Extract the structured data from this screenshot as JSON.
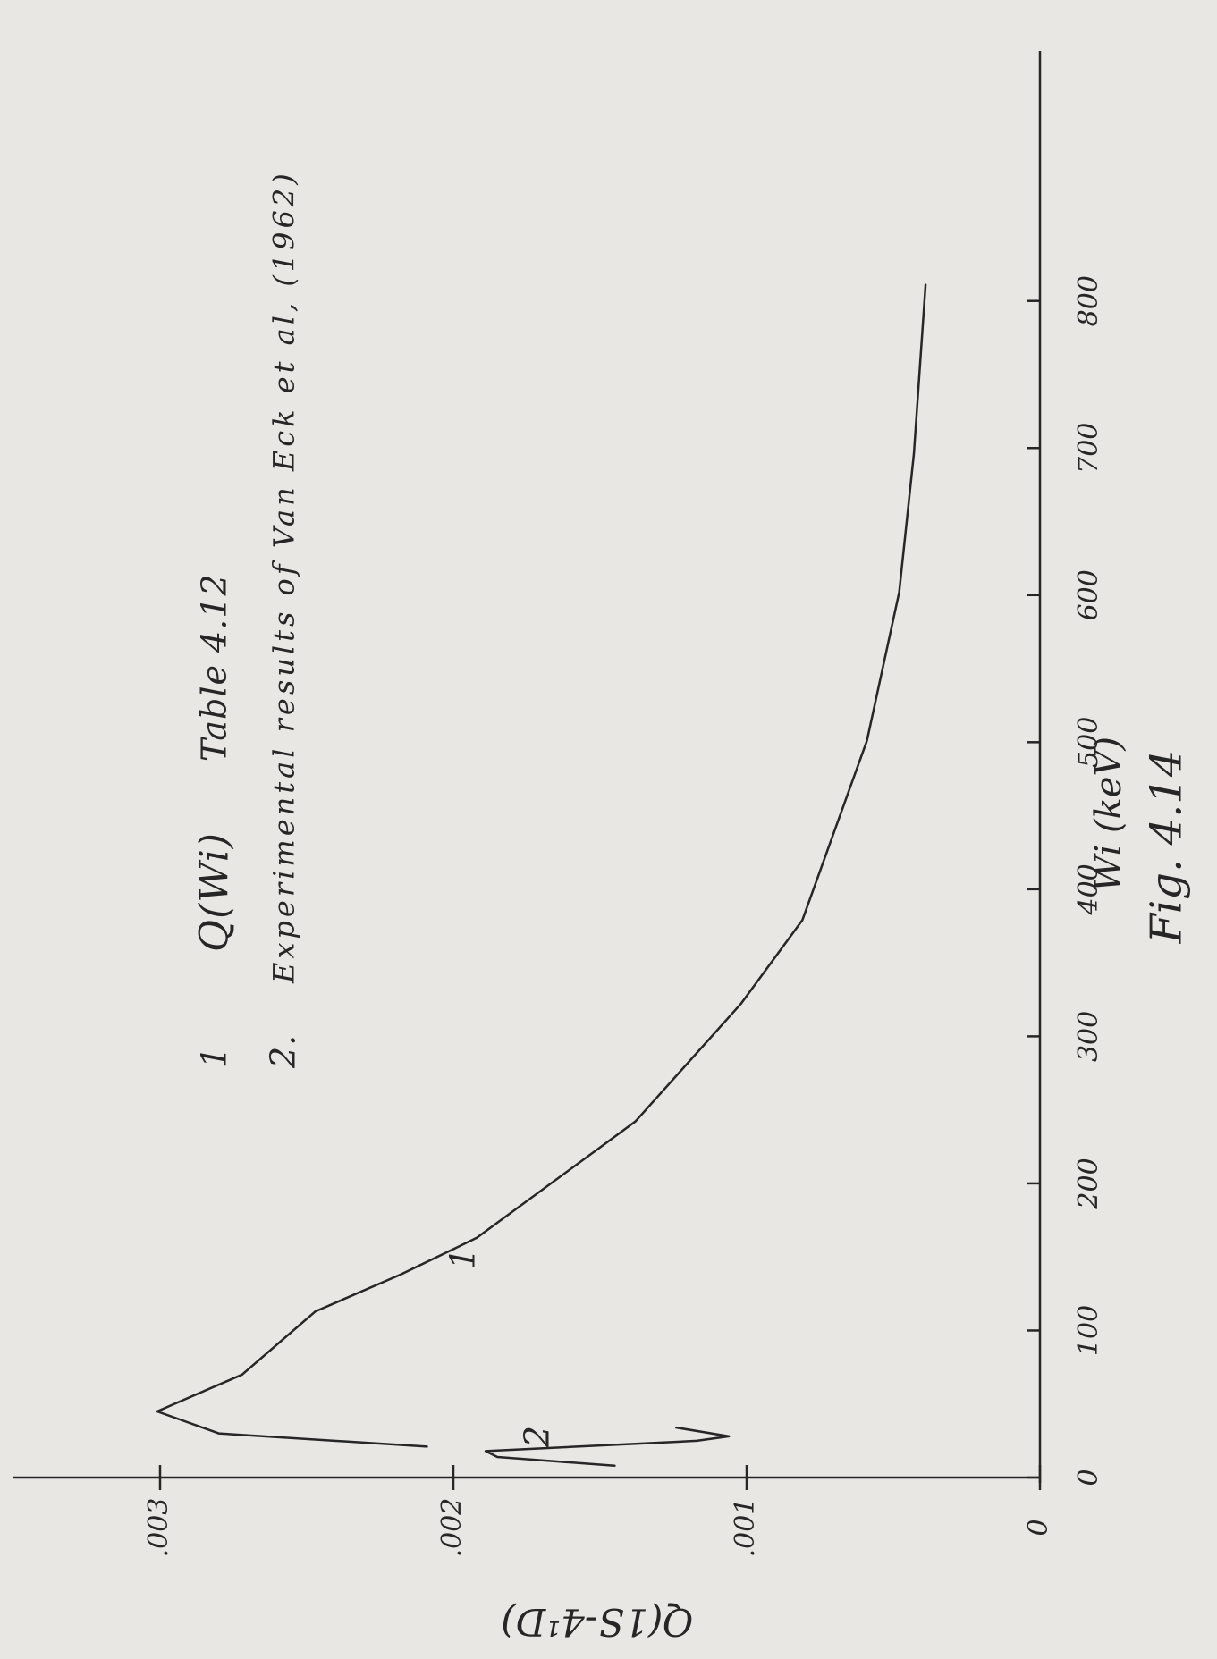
{
  "chart_data": {
    "type": "line",
    "figure_label": "Fig. 4.14",
    "x_label": "Wi (keV)",
    "y_label": "Q(1S-4¹D)",
    "xlim": [
      0,
      970
    ],
    "ylim": [
      0,
      0.0035
    ],
    "xticks": [
      0,
      100,
      200,
      300,
      400,
      500,
      600,
      700,
      800
    ],
    "yticks": [
      0,
      {
        "value": 0.001,
        "label": ".001"
      },
      {
        "value": 0.002,
        "label": ".002"
      },
      {
        "value": 0.003,
        "label": ".003"
      }
    ],
    "color": "#262626",
    "series": [
      {
        "name": "Q(Wi)",
        "source": "Table 4.12",
        "legend_label": "1",
        "curve_label": "1",
        "x": [
          21,
          30,
          45,
          70,
          113,
          138,
          163,
          242,
          322,
          379,
          501,
          602,
          696,
          811
        ],
        "values": [
          0.00209,
          0.0028,
          0.00301,
          0.00272,
          0.00247,
          0.00218,
          0.00192,
          0.00138,
          0.00102,
          0.00081,
          0.00059,
          0.00048,
          0.00043,
          0.00039
        ]
      },
      {
        "name": "Experimental results of Van Eck et al, (1962)",
        "legend_label": "2.",
        "curve_label": "2",
        "x": [
          8,
          14,
          18,
          25,
          28,
          34
        ],
        "values": [
          0.00145,
          0.00185,
          0.00189,
          0.00117,
          0.00106,
          0.00124
        ]
      }
    ]
  }
}
